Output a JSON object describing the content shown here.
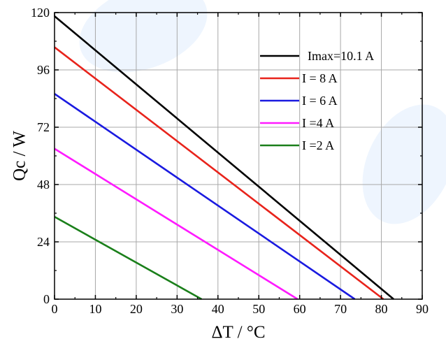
{
  "chart_data": {
    "type": "line",
    "title": "",
    "xlabel": "ΔT / °C",
    "ylabel": "Qc / W",
    "xlim": [
      0,
      90
    ],
    "ylim": [
      0,
      120
    ],
    "xticks": [
      0,
      10,
      20,
      30,
      40,
      50,
      60,
      70,
      80,
      90
    ],
    "yticks": [
      0,
      24,
      48,
      72,
      96,
      120
    ],
    "grid": true,
    "legend_position": "top-right",
    "series": [
      {
        "name": "Imax=10.1 A",
        "color": "#000000",
        "x": [
          0,
          83
        ],
        "y": [
          118.5,
          0
        ]
      },
      {
        "name": "I = 8 A",
        "color": "#e8231b",
        "x": [
          0,
          80.5
        ],
        "y": [
          105.5,
          0
        ]
      },
      {
        "name": "I = 6 A",
        "color": "#1a1ae0",
        "x": [
          0,
          73.5
        ],
        "y": [
          86,
          0
        ]
      },
      {
        "name": "I =4 A",
        "color": "#ff1aff",
        "x": [
          0,
          59.5
        ],
        "y": [
          63,
          0
        ]
      },
      {
        "name": "I =2 A",
        "color": "#1a7f1a",
        "x": [
          0,
          36
        ],
        "y": [
          34.5,
          0
        ]
      }
    ]
  }
}
